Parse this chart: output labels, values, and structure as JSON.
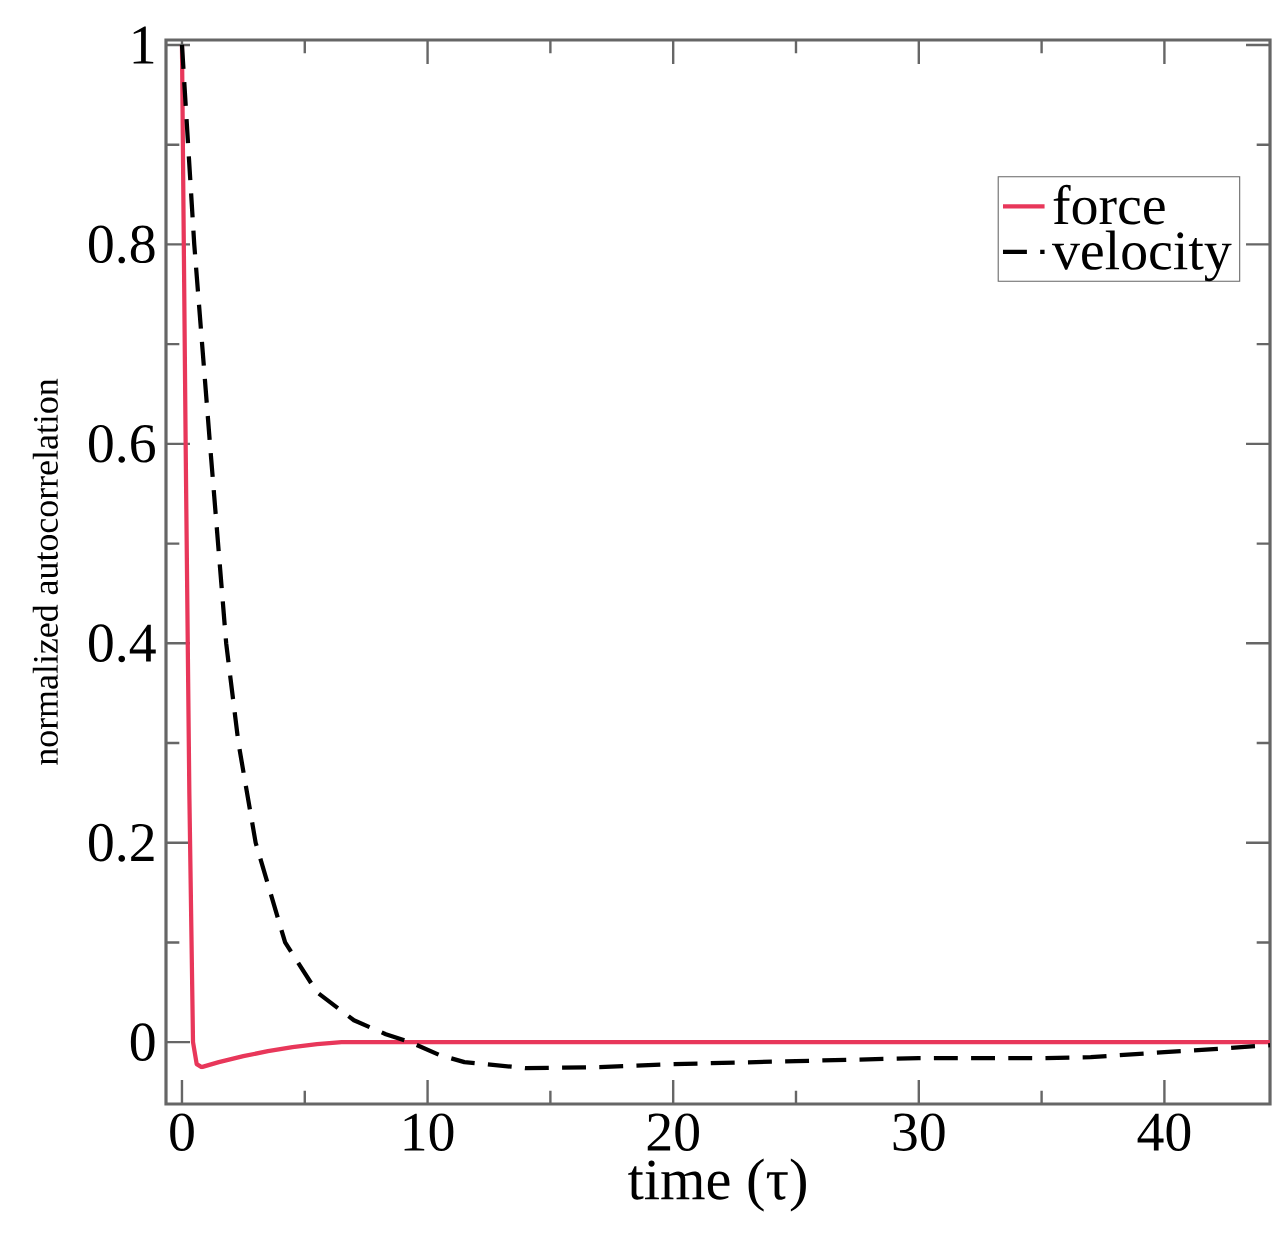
{
  "chart_data": {
    "type": "line",
    "xlabel": "time (τ)",
    "ylabel": "normalized autocorrelation",
    "xlim": [
      -0.65,
      44.3
    ],
    "ylim": [
      -0.062,
      1.005
    ],
    "xticks": [
      0,
      10,
      20,
      30,
      40
    ],
    "yticks": [
      0,
      0.2,
      0.4,
      0.6,
      0.8,
      1
    ],
    "legend": "top right",
    "marker": "none",
    "series": [
      {
        "name": "force",
        "color": "#e8375a",
        "line_style": "solid",
        "x": [
          0,
          0.15,
          0.3,
          0.45,
          0.6,
          0.8,
          1.5,
          2.5,
          3.5,
          4.5,
          5.5,
          6.5,
          8,
          15,
          25,
          35,
          44.3
        ],
        "values": [
          1,
          0.6,
          0.25,
          0.0,
          -0.022,
          -0.025,
          -0.02,
          -0.014,
          -0.009,
          -0.005,
          -0.002,
          0,
          0,
          0,
          0,
          0,
          0
        ]
      },
      {
        "name": "velocity",
        "color": "#000000",
        "line_style": "dashed",
        "x": [
          0,
          0.5,
          1.14,
          1.8,
          2.3,
          3.0,
          4.2,
          5.5,
          7,
          8.3,
          9.3,
          10.5,
          11.5,
          14,
          17,
          20,
          25,
          30,
          35,
          37,
          40,
          42,
          44.3
        ],
        "values": [
          1,
          0.8,
          0.6,
          0.4,
          0.3,
          0.2,
          0.1,
          0.05,
          0.022,
          0.008,
          0,
          -0.013,
          -0.02,
          -0.026,
          -0.025,
          -0.022,
          -0.019,
          -0.016,
          -0.016,
          -0.015,
          -0.01,
          -0.007,
          -0.003
        ]
      }
    ]
  }
}
